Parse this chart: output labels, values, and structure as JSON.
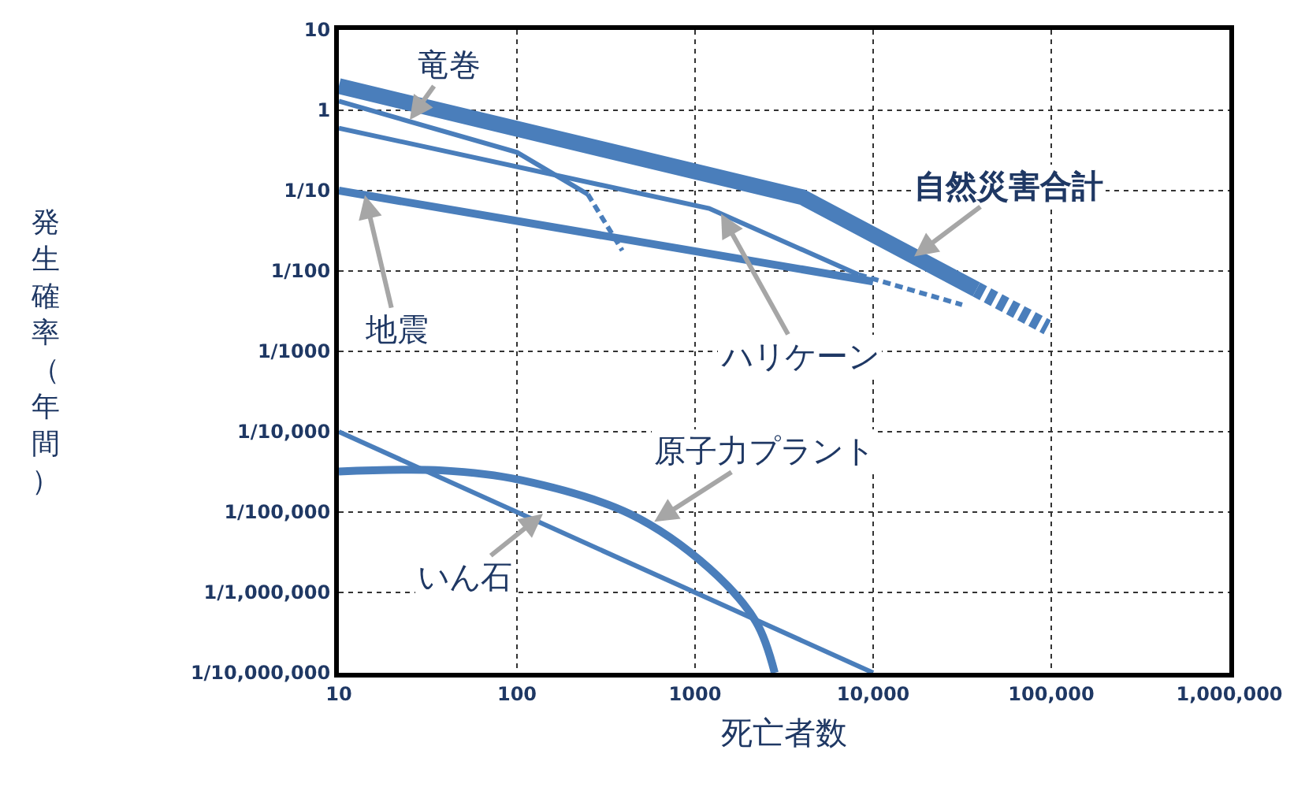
{
  "chart_data": {
    "type": "line",
    "xlabel": "死亡者数",
    "ylabel": "発生確率（年間）",
    "xlim": [
      10,
      1000000
    ],
    "ylim": [
      1e-07,
      10
    ],
    "log": "xy",
    "grid": true,
    "marker": "none",
    "xticks": [
      10,
      100,
      1000,
      {
        "value": 10000,
        "label": "10,000"
      },
      {
        "value": 100000,
        "label": "100,000"
      },
      {
        "value": 1000000,
        "label": "1,000,000"
      }
    ],
    "yticks": [
      10,
      1,
      {
        "value": 0.1,
        "label": "1/10"
      },
      {
        "value": 0.01,
        "label": "1/100"
      },
      {
        "value": 0.001,
        "label": "1/1000"
      },
      {
        "value": 0.0001,
        "label": "1/10,000"
      },
      {
        "value": 1e-05,
        "label": "1/100,000"
      },
      {
        "value": 1e-06,
        "label": "1/1,000,000"
      },
      {
        "value": 1e-07,
        "label": "1/10,000,000"
      }
    ],
    "series": [
      {
        "color": "#4a7ebb",
        "line_style": "solid",
        "x": [
          10,
          4000,
          38000
        ],
        "values": [
          2,
          0.083,
          0.0059
        ]
      },
      {
        "color": "#4a7ebb",
        "line_style": "dashed",
        "x": [
          38000,
          95000
        ],
        "values": [
          0.0059,
          0.002
        ]
      },
      {
        "color": "#4a7ebb",
        "line_style": "solid",
        "x": [
          10,
          100,
          250
        ],
        "values": [
          1.3,
          0.3,
          0.09
        ]
      },
      {
        "color": "#4a7ebb",
        "line_style": "dashed",
        "x": [
          250,
          390
        ],
        "values": [
          0.09,
          0.018
        ]
      },
      {
        "color": "#4a7ebb",
        "line_style": "solid",
        "x": [
          10,
          1200,
          8300
        ],
        "values": [
          0.6,
          0.06,
          0.009
        ]
      },
      {
        "color": "#4a7ebb",
        "line_style": "dashed",
        "x": [
          8300,
          31600
        ],
        "values": [
          0.009,
          0.0038
        ]
      },
      {
        "color": "#4a7ebb",
        "line_style": "solid",
        "x": [
          10,
          10000
        ],
        "values": [
          0.1,
          0.0074
        ]
      },
      {
        "color": "#4a7ebb",
        "line_style": "solid",
        "x": [
          10,
          38,
          105,
          430,
          1200,
          2200,
          2800
        ],
        "values": [
          3.2e-05,
          3.3e-05,
          2.5e-05,
          9.5e-06,
          2e-06,
          4.3e-07,
          1e-07
        ]
      },
      {
        "color": "#4a7ebb",
        "line_style": "solid",
        "x": [
          10,
          10000
        ],
        "values": [
          0.0001,
          1e-07
        ]
      }
    ],
    "annotations": [
      {
        "text": "竜巻",
        "x": 25,
        "y": 0.76
      },
      {
        "text": "自然災害合計",
        "x": 17000,
        "y": 0.0152
      },
      {
        "text": "地震",
        "x": 14,
        "y": 0.088
      },
      {
        "text": "ハリケーン",
        "x": 1400,
        "y": 0.0515
      },
      {
        "text": "原子力プラント",
        "x": 590,
        "y": 7.6e-06
      },
      {
        "text": "いん石",
        "x": 140,
        "y": 9.5e-06
      }
    ]
  }
}
